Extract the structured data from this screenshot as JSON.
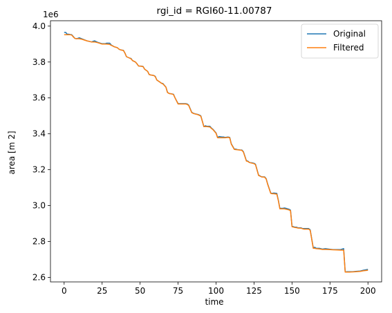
{
  "chart_data": {
    "type": "line",
    "title": "rgi_id = RGI60-11.00787",
    "xlabel": "time",
    "ylabel": "area [m 2]",
    "y_offset_label": "1e6",
    "xlim": [
      -9,
      209
    ],
    "ylim": [
      2.575,
      4.03
    ],
    "xticks": [
      0,
      25,
      50,
      75,
      100,
      125,
      150,
      175,
      200
    ],
    "xtick_labels": [
      "0",
      "25",
      "50",
      "75",
      "100",
      "125",
      "150",
      "175",
      "200"
    ],
    "yticks": [
      2.6,
      2.8,
      3.0,
      3.2,
      3.4,
      3.6,
      3.8,
      4.0
    ],
    "ytick_labels": [
      "2.6",
      "2.8",
      "3.0",
      "3.2",
      "3.4",
      "3.6",
      "3.8",
      "4.0"
    ],
    "grid": false,
    "legend_position": "top-right",
    "colors": {
      "original": "#1f77b4",
      "filtered": "#ff7f0e"
    },
    "series": [
      {
        "name": "Original",
        "x": [
          0,
          1,
          2,
          3,
          4,
          5,
          6,
          7,
          8,
          9,
          10,
          12,
          15,
          18,
          20,
          22,
          25,
          27,
          28,
          30,
          31,
          33,
          35,
          36,
          37,
          39,
          40,
          41,
          43,
          44,
          45,
          47,
          48,
          49,
          51,
          52,
          53,
          55,
          56,
          57,
          59,
          60,
          61,
          63,
          64,
          65,
          67,
          68,
          69,
          71,
          72,
          73,
          75,
          77,
          78,
          80,
          81,
          82,
          84,
          85,
          86,
          88,
          89,
          90,
          92,
          93,
          94,
          96,
          97,
          98,
          100,
          101,
          102,
          104,
          105,
          106,
          108,
          109,
          110,
          112,
          113,
          114,
          116,
          117,
          118,
          120,
          121,
          122,
          124,
          125,
          126,
          128,
          129,
          130,
          132,
          133,
          134,
          136,
          137,
          138,
          140,
          141,
          142,
          144,
          145,
          146,
          148,
          149,
          150,
          152,
          153,
          154,
          156,
          157,
          158,
          160,
          161,
          162,
          164,
          165,
          166,
          168,
          170,
          172,
          175,
          177,
          180,
          182,
          184,
          185,
          186,
          188,
          190,
          192,
          195,
          197,
          200
        ],
        "values": [
          3.965,
          3.965,
          3.955,
          3.955,
          3.953,
          3.952,
          3.942,
          3.932,
          3.93,
          3.932,
          3.935,
          3.928,
          3.918,
          3.912,
          3.918,
          3.91,
          3.902,
          3.902,
          3.905,
          3.905,
          3.895,
          3.885,
          3.88,
          3.872,
          3.868,
          3.865,
          3.85,
          3.83,
          3.822,
          3.82,
          3.808,
          3.8,
          3.79,
          3.778,
          3.777,
          3.775,
          3.76,
          3.748,
          3.73,
          3.728,
          3.725,
          3.72,
          3.7,
          3.688,
          3.682,
          3.68,
          3.66,
          3.632,
          3.625,
          3.622,
          3.62,
          3.6,
          3.568,
          3.568,
          3.568,
          3.568,
          3.566,
          3.56,
          3.52,
          3.515,
          3.512,
          3.508,
          3.505,
          3.5,
          3.44,
          3.445,
          3.442,
          3.442,
          3.432,
          3.425,
          3.405,
          3.38,
          3.385,
          3.382,
          3.382,
          3.38,
          3.382,
          3.38,
          3.345,
          3.315,
          3.315,
          3.312,
          3.31,
          3.31,
          3.3,
          3.25,
          3.248,
          3.24,
          3.238,
          3.236,
          3.23,
          3.17,
          3.165,
          3.16,
          3.16,
          3.15,
          3.12,
          3.07,
          3.068,
          3.07,
          3.068,
          3.03,
          2.985,
          2.985,
          2.987,
          2.985,
          2.98,
          2.975,
          2.885,
          2.88,
          2.88,
          2.876,
          2.876,
          2.872,
          2.872,
          2.872,
          2.872,
          2.865,
          2.765,
          2.768,
          2.762,
          2.762,
          2.758,
          2.76,
          2.757,
          2.755,
          2.755,
          2.755,
          2.76,
          2.63,
          2.632,
          2.632,
          2.632,
          2.634,
          2.636,
          2.64,
          2.645
        ]
      },
      {
        "name": "Filtered",
        "x": [
          0,
          1,
          2,
          3,
          4,
          5,
          6,
          7,
          8,
          9,
          10,
          12,
          15,
          18,
          20,
          22,
          25,
          27,
          28,
          30,
          31,
          33,
          35,
          36,
          37,
          39,
          40,
          41,
          43,
          44,
          45,
          47,
          48,
          49,
          51,
          52,
          53,
          55,
          56,
          57,
          59,
          60,
          61,
          63,
          64,
          65,
          67,
          68,
          69,
          71,
          72,
          73,
          75,
          77,
          78,
          80,
          81,
          82,
          84,
          85,
          86,
          88,
          89,
          90,
          92,
          93,
          94,
          96,
          97,
          98,
          100,
          101,
          102,
          104,
          105,
          106,
          108,
          109,
          110,
          112,
          113,
          114,
          116,
          117,
          118,
          120,
          121,
          122,
          124,
          125,
          126,
          128,
          129,
          130,
          132,
          133,
          134,
          136,
          137,
          138,
          140,
          141,
          142,
          144,
          145,
          146,
          148,
          149,
          150,
          152,
          153,
          154,
          156,
          157,
          158,
          160,
          161,
          162,
          164,
          165,
          166,
          168,
          170,
          172,
          175,
          177,
          180,
          182,
          184,
          185,
          186,
          188,
          190,
          192,
          195,
          197,
          200
        ],
        "values": [
          3.952,
          3.952,
          3.952,
          3.952,
          3.952,
          3.95,
          3.94,
          3.932,
          3.93,
          3.93,
          3.93,
          3.926,
          3.918,
          3.912,
          3.912,
          3.908,
          3.9,
          3.9,
          3.9,
          3.898,
          3.893,
          3.885,
          3.88,
          3.872,
          3.868,
          3.864,
          3.85,
          3.83,
          3.822,
          3.818,
          3.808,
          3.8,
          3.79,
          3.778,
          3.776,
          3.774,
          3.76,
          3.748,
          3.73,
          3.728,
          3.725,
          3.718,
          3.7,
          3.688,
          3.682,
          3.678,
          3.66,
          3.63,
          3.625,
          3.622,
          3.618,
          3.6,
          3.566,
          3.566,
          3.566,
          3.566,
          3.564,
          3.558,
          3.518,
          3.514,
          3.511,
          3.507,
          3.503,
          3.498,
          3.44,
          3.44,
          3.44,
          3.438,
          3.43,
          3.423,
          3.403,
          3.378,
          3.378,
          3.378,
          3.378,
          3.378,
          3.38,
          3.378,
          3.343,
          3.313,
          3.312,
          3.311,
          3.309,
          3.308,
          3.298,
          3.248,
          3.246,
          3.24,
          3.236,
          3.234,
          3.228,
          3.168,
          3.164,
          3.16,
          3.158,
          3.148,
          3.118,
          3.068,
          3.066,
          3.066,
          3.064,
          3.028,
          2.982,
          2.982,
          2.982,
          2.98,
          2.976,
          2.972,
          2.882,
          2.878,
          2.877,
          2.875,
          2.874,
          2.871,
          2.869,
          2.869,
          2.869,
          2.862,
          2.762,
          2.762,
          2.76,
          2.759,
          2.756,
          2.756,
          2.755,
          2.754,
          2.753,
          2.752,
          2.752,
          2.63,
          2.63,
          2.63,
          2.631,
          2.632,
          2.634,
          2.637,
          2.64
        ]
      }
    ]
  }
}
